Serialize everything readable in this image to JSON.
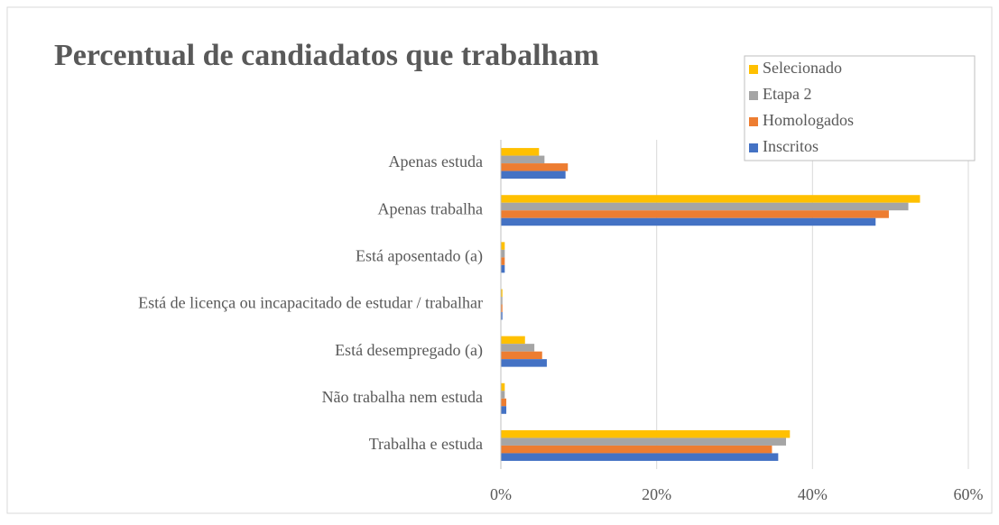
{
  "chart_data": {
    "type": "hbar",
    "title": "Percentual de candiadatos que trabalham",
    "categories": [
      "Apenas estuda",
      "Apenas trabalha",
      "Está aposentado (a)",
      "Está de licença ou incapacitado de estudar / trabalhar",
      "Está desempregado (a)",
      "Não trabalha nem estuda",
      "Trabalha e estuda"
    ],
    "series": [
      {
        "name": "Selecionado",
        "color": "#ffc000",
        "values": [
          4.9,
          53.8,
          0.5,
          0.2,
          3.1,
          0.5,
          37.1
        ]
      },
      {
        "name": "Etapa 2",
        "color": "#a5a5a5",
        "values": [
          5.6,
          52.3,
          0.5,
          0.2,
          4.3,
          0.5,
          36.6
        ]
      },
      {
        "name": "Homologados",
        "color": "#ed7d31",
        "values": [
          8.6,
          49.8,
          0.5,
          0.2,
          5.3,
          0.7,
          34.8
        ]
      },
      {
        "name": "Inscritos",
        "color": "#4472c4",
        "values": [
          8.3,
          48.1,
          0.5,
          0.2,
          5.9,
          0.7,
          35.6
        ]
      }
    ],
    "xlim": [
      0,
      60
    ],
    "xticks": [
      {
        "value": 0,
        "label": "0%"
      },
      {
        "value": 20,
        "label": "20%"
      },
      {
        "value": 40,
        "label": "40%"
      },
      {
        "value": 60,
        "label": "60%"
      }
    ],
    "grid": true,
    "legend": "upper right"
  }
}
